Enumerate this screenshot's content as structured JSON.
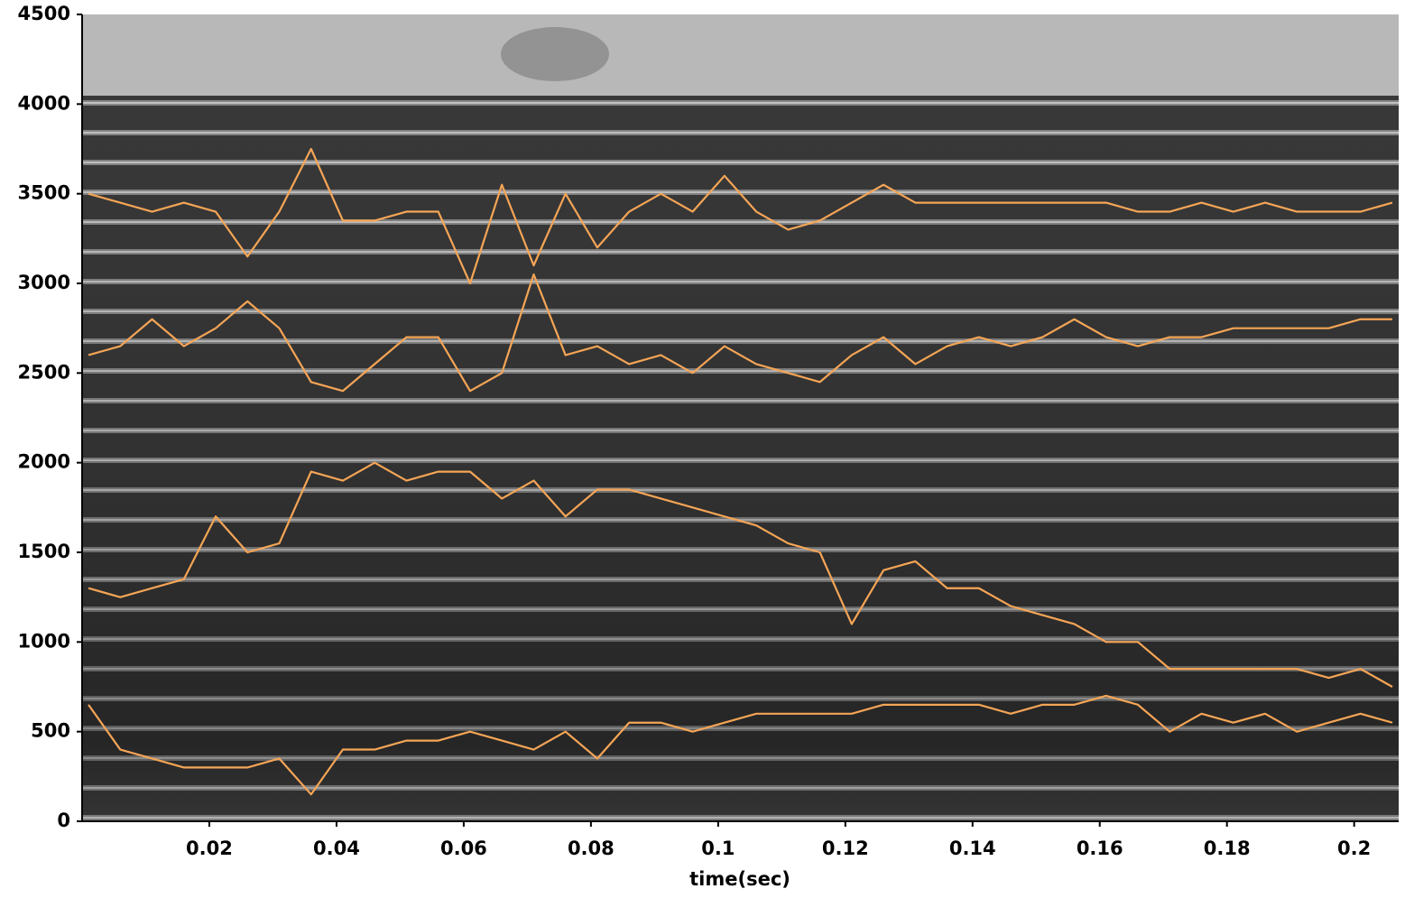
{
  "chart_data": {
    "type": "line",
    "xlabel": "time(sec)",
    "xlim": [
      0,
      0.207
    ],
    "ylim": [
      0,
      4500
    ],
    "xticks": [
      0.02,
      0.04,
      0.06,
      0.08,
      0.1,
      0.12,
      0.14,
      0.16,
      0.18,
      0.2
    ],
    "yticks": [
      0,
      500,
      1000,
      1500,
      2000,
      2500,
      3000,
      3500,
      4000,
      4500
    ],
    "x": [
      0.001,
      0.006,
      0.011,
      0.016,
      0.021,
      0.026,
      0.031,
      0.036,
      0.041,
      0.046,
      0.051,
      0.056,
      0.061,
      0.066,
      0.071,
      0.076,
      0.081,
      0.086,
      0.091,
      0.096,
      0.101,
      0.106,
      0.111,
      0.116,
      0.121,
      0.126,
      0.131,
      0.136,
      0.141,
      0.146,
      0.151,
      0.156,
      0.161,
      0.166,
      0.171,
      0.176,
      0.181,
      0.186,
      0.191,
      0.196,
      0.201,
      0.206
    ],
    "series": [
      {
        "color": "#f5a556",
        "values": [
          3500,
          3450,
          3400,
          3450,
          3400,
          3150,
          3400,
          3750,
          3350,
          3350,
          3400,
          3400,
          3000,
          3550,
          3100,
          3500,
          3200,
          3400,
          3500,
          3400,
          3600,
          3400,
          3300,
          3350,
          3450,
          3550,
          3450,
          3450,
          3450,
          3450,
          3450,
          3450,
          3450,
          3400,
          3400,
          3450,
          3400,
          3450,
          3400,
          3400,
          3400,
          3450
        ]
      },
      {
        "color": "#f5a556",
        "values": [
          2600,
          2650,
          2800,
          2650,
          2750,
          2900,
          2750,
          2450,
          2400,
          2550,
          2700,
          2700,
          2400,
          2500,
          3050,
          2600,
          2650,
          2550,
          2600,
          2500,
          2650,
          2550,
          2500,
          2450,
          2600,
          2700,
          2550,
          2650,
          2700,
          2650,
          2700,
          2800,
          2700,
          2650,
          2700,
          2700,
          2750,
          2750,
          2750,
          2750,
          2800,
          2800
        ]
      },
      {
        "color": "#f5a556",
        "values": [
          1300,
          1250,
          1300,
          1350,
          1700,
          1500,
          1550,
          1950,
          1900,
          2000,
          1900,
          1950,
          1950,
          1800,
          1900,
          1700,
          1850,
          1850,
          1800,
          1750,
          1700,
          1650,
          1550,
          1500,
          1100,
          1400,
          1450,
          1300,
          1300,
          1200,
          1150,
          1100,
          1000,
          1000,
          850,
          850,
          850,
          850,
          850,
          800,
          850,
          750
        ]
      },
      {
        "color": "#f5a556",
        "values": [
          650,
          400,
          350,
          300,
          300,
          300,
          350,
          150,
          400,
          400,
          450,
          450,
          500,
          450,
          400,
          500,
          350,
          550,
          550,
          500,
          550,
          600,
          600,
          600,
          600,
          650,
          650,
          650,
          650,
          600,
          650,
          650,
          700,
          650,
          500,
          600,
          550,
          600,
          500,
          550,
          600,
          550
        ]
      }
    ]
  }
}
